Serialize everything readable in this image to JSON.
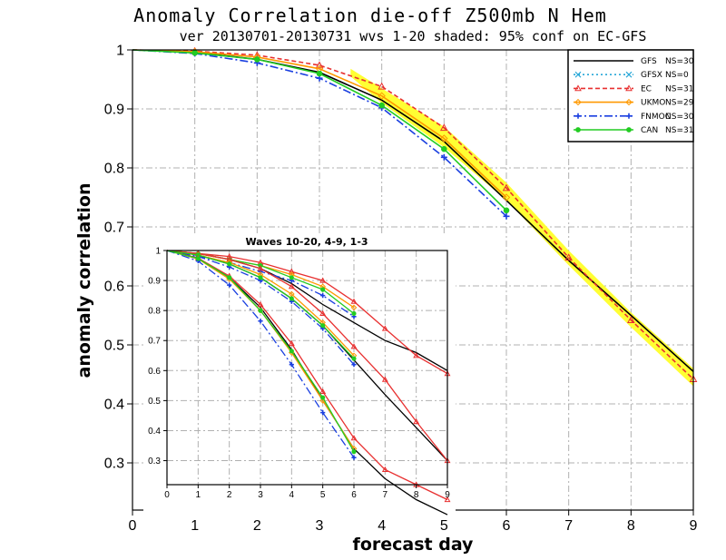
{
  "chart_data": [
    {
      "type": "line",
      "title": "Anomaly Correlation die-off   Z500mb N Hem",
      "subtitle": "ver 20130701-20130731 wvs 1-20  shaded: 95% conf on EC-GFS",
      "xlabel": "forecast day",
      "ylabel": "anomaly correlation",
      "xlim": [
        0,
        9
      ],
      "ylim": [
        0.22,
        1.0
      ],
      "x_ticks": [
        "0",
        "1",
        "2",
        "3",
        "4",
        "5",
        "6",
        "7",
        "8",
        "9"
      ],
      "y_ticks": [
        "0.3",
        "0.4",
        "0.5",
        "0.6",
        "0.7",
        "0.8",
        "0.9",
        "1"
      ],
      "grid": true,
      "legend_position": "top-right",
      "confidence_band": {
        "color": "#ffff33",
        "x": [
          3.5,
          4,
          5,
          6,
          7,
          8,
          9
        ],
        "lower": [
          0.955,
          0.91,
          0.835,
          0.745,
          0.635,
          0.53,
          0.43
        ],
        "upper": [
          0.968,
          0.935,
          0.87,
          0.775,
          0.66,
          0.555,
          0.46
        ]
      },
      "series": [
        {
          "name": "GFS",
          "ns": "NS=30",
          "color": "#000000",
          "style": "solid",
          "marker": "none",
          "x": [
            0,
            1,
            2,
            3,
            4,
            5,
            6,
            7,
            8,
            9
          ],
          "values": [
            1.0,
            0.996,
            0.984,
            0.962,
            0.915,
            0.845,
            0.745,
            0.643,
            0.55,
            0.455
          ]
        },
        {
          "name": "GFSX",
          "ns": "NS=0",
          "color": "#2aa8d8",
          "style": "dotted",
          "marker": "x",
          "x": [],
          "values": []
        },
        {
          "name": "EC",
          "ns": "NS=31",
          "color": "#e83030",
          "style": "dashed",
          "marker": "triangle",
          "x": [
            0,
            1,
            2,
            3,
            4,
            5,
            6,
            7,
            8,
            9
          ],
          "values": [
            1.0,
            0.998,
            0.991,
            0.974,
            0.938,
            0.868,
            0.766,
            0.648,
            0.542,
            0.442
          ]
        },
        {
          "name": "UKMO",
          "ns": "NS=29",
          "color": "#ff9900",
          "style": "solid",
          "marker": "diamond",
          "x": [
            0,
            1,
            2,
            3,
            4,
            5,
            6
          ],
          "values": [
            1.0,
            0.997,
            0.988,
            0.968,
            0.922,
            0.85,
            0.75
          ]
        },
        {
          "name": "FNMOC",
          "ns": "NS=30",
          "color": "#1a3fe0",
          "style": "dashdot",
          "marker": "plus",
          "x": [
            0,
            1,
            2,
            3,
            4,
            5,
            6
          ],
          "values": [
            1.0,
            0.994,
            0.978,
            0.952,
            0.902,
            0.818,
            0.718
          ]
        },
        {
          "name": "CAN",
          "ns": "NS=31",
          "color": "#22cc22",
          "style": "solid",
          "marker": "dot",
          "x": [
            0,
            1,
            2,
            3,
            4,
            5,
            6
          ],
          "values": [
            1.0,
            0.995,
            0.984,
            0.96,
            0.906,
            0.832,
            0.728
          ]
        }
      ]
    },
    {
      "type": "line",
      "title": "Waves 10-20, 4-9, 1-3",
      "xlim": [
        0,
        9
      ],
      "ylim": [
        0.22,
        1.0
      ],
      "x_ticks": [
        "0",
        "1",
        "2",
        "3",
        "4",
        "5",
        "6",
        "7",
        "8",
        "9"
      ],
      "y_ticks": [
        "0.3",
        "0.4",
        "0.5",
        "0.6",
        "0.7",
        "0.8",
        "0.9",
        "1"
      ],
      "grid": true,
      "series": [
        {
          "name": "GFS",
          "group": "waves 1-3",
          "color": "#000000",
          "style": "solid",
          "marker": "none",
          "x": [
            0,
            1,
            2,
            3,
            4,
            5,
            6,
            7,
            8,
            9
          ],
          "values": [
            1.0,
            0.99,
            0.97,
            0.94,
            0.89,
            0.82,
            0.76,
            0.7,
            0.66,
            0.6
          ]
        },
        {
          "name": "EC",
          "group": "waves 1-3",
          "color": "#e83030",
          "style": "solid",
          "marker": "triangle",
          "x": [
            0,
            1,
            2,
            3,
            4,
            5,
            6,
            7,
            8,
            9
          ],
          "values": [
            1.0,
            0.99,
            0.98,
            0.96,
            0.93,
            0.9,
            0.83,
            0.74,
            0.65,
            0.59
          ]
        },
        {
          "name": "UKMO",
          "group": "waves 1-3",
          "color": "#ff9900",
          "style": "solid",
          "marker": "diamond",
          "x": [
            0,
            1,
            2,
            3,
            4,
            5,
            6
          ],
          "values": [
            1.0,
            0.99,
            0.97,
            0.95,
            0.92,
            0.88,
            0.81
          ]
        },
        {
          "name": "FNMOC",
          "group": "waves 1-3",
          "color": "#1a3fe0",
          "style": "dashdot",
          "marker": "plus",
          "x": [
            0,
            1,
            2,
            3,
            4,
            5,
            6
          ],
          "values": [
            1.0,
            0.98,
            0.96,
            0.93,
            0.9,
            0.85,
            0.78
          ]
        },
        {
          "name": "CAN",
          "group": "waves 1-3",
          "color": "#22cc22",
          "style": "solid",
          "marker": "dot",
          "x": [
            0,
            1,
            2,
            3,
            4,
            5,
            6
          ],
          "values": [
            1.0,
            0.99,
            0.97,
            0.95,
            0.91,
            0.87,
            0.79
          ]
        },
        {
          "name": "GFS",
          "group": "waves 4-9",
          "color": "#000000",
          "style": "solid",
          "marker": "none",
          "x": [
            0,
            1,
            2,
            3,
            4,
            5,
            6,
            7,
            8,
            9
          ],
          "values": [
            1.0,
            0.985,
            0.955,
            0.91,
            0.84,
            0.75,
            0.635,
            0.52,
            0.41,
            0.3
          ]
        },
        {
          "name": "EC",
          "group": "waves 4-9",
          "color": "#e83030",
          "style": "solid",
          "marker": "triangle",
          "x": [
            0,
            1,
            2,
            3,
            4,
            5,
            6,
            7,
            8,
            9
          ],
          "values": [
            1.0,
            0.99,
            0.97,
            0.94,
            0.88,
            0.79,
            0.68,
            0.57,
            0.43,
            0.3
          ]
        },
        {
          "name": "UKMO",
          "group": "waves 4-9",
          "color": "#ff9900",
          "style": "solid",
          "marker": "diamond",
          "x": [
            0,
            1,
            2,
            3,
            4,
            5,
            6
          ],
          "values": [
            1.0,
            0.985,
            0.96,
            0.92,
            0.855,
            0.76,
            0.65
          ]
        },
        {
          "name": "FNMOC",
          "group": "waves 4-9",
          "color": "#1a3fe0",
          "style": "dashdot",
          "marker": "plus",
          "x": [
            0,
            1,
            2,
            3,
            4,
            5,
            6
          ],
          "values": [
            1.0,
            0.98,
            0.945,
            0.9,
            0.83,
            0.74,
            0.62
          ]
        },
        {
          "name": "CAN",
          "group": "waves 4-9",
          "color": "#22cc22",
          "style": "solid",
          "marker": "dot",
          "x": [
            0,
            1,
            2,
            3,
            4,
            5,
            6
          ],
          "values": [
            1.0,
            0.985,
            0.955,
            0.91,
            0.84,
            0.75,
            0.64
          ]
        },
        {
          "name": "GFS",
          "group": "waves 10-20",
          "color": "#000000",
          "style": "solid",
          "marker": "none",
          "x": [
            0,
            1,
            2,
            3,
            4,
            5,
            6,
            7,
            8,
            9
          ],
          "values": [
            1.0,
            0.975,
            0.91,
            0.81,
            0.67,
            0.5,
            0.34,
            0.24,
            0.17,
            0.12
          ]
        },
        {
          "name": "EC",
          "group": "waves 10-20",
          "color": "#e83030",
          "style": "solid",
          "marker": "triangle",
          "x": [
            0,
            1,
            2,
            3,
            4,
            5,
            6,
            7,
            8,
            9
          ],
          "values": [
            1.0,
            0.975,
            0.915,
            0.82,
            0.69,
            0.53,
            0.375,
            0.27,
            0.22,
            0.17
          ]
        },
        {
          "name": "UKMO",
          "group": "waves 10-20",
          "color": "#ff9900",
          "style": "solid",
          "marker": "diamond",
          "x": [
            0,
            1,
            2,
            3,
            4,
            5,
            6
          ],
          "values": [
            1.0,
            0.972,
            0.905,
            0.8,
            0.66,
            0.5,
            0.34
          ]
        },
        {
          "name": "FNMOC",
          "group": "waves 10-20",
          "color": "#1a3fe0",
          "style": "dashdot",
          "marker": "plus",
          "x": [
            0,
            1,
            2,
            3,
            4,
            5,
            6
          ],
          "values": [
            1.0,
            0.965,
            0.885,
            0.765,
            0.62,
            0.46,
            0.31
          ]
        },
        {
          "name": "CAN",
          "group": "waves 10-20",
          "color": "#22cc22",
          "style": "solid",
          "marker": "dot",
          "x": [
            0,
            1,
            2,
            3,
            4,
            5,
            6
          ],
          "values": [
            1.0,
            0.973,
            0.91,
            0.8,
            0.665,
            0.51,
            0.33
          ]
        }
      ]
    }
  ]
}
